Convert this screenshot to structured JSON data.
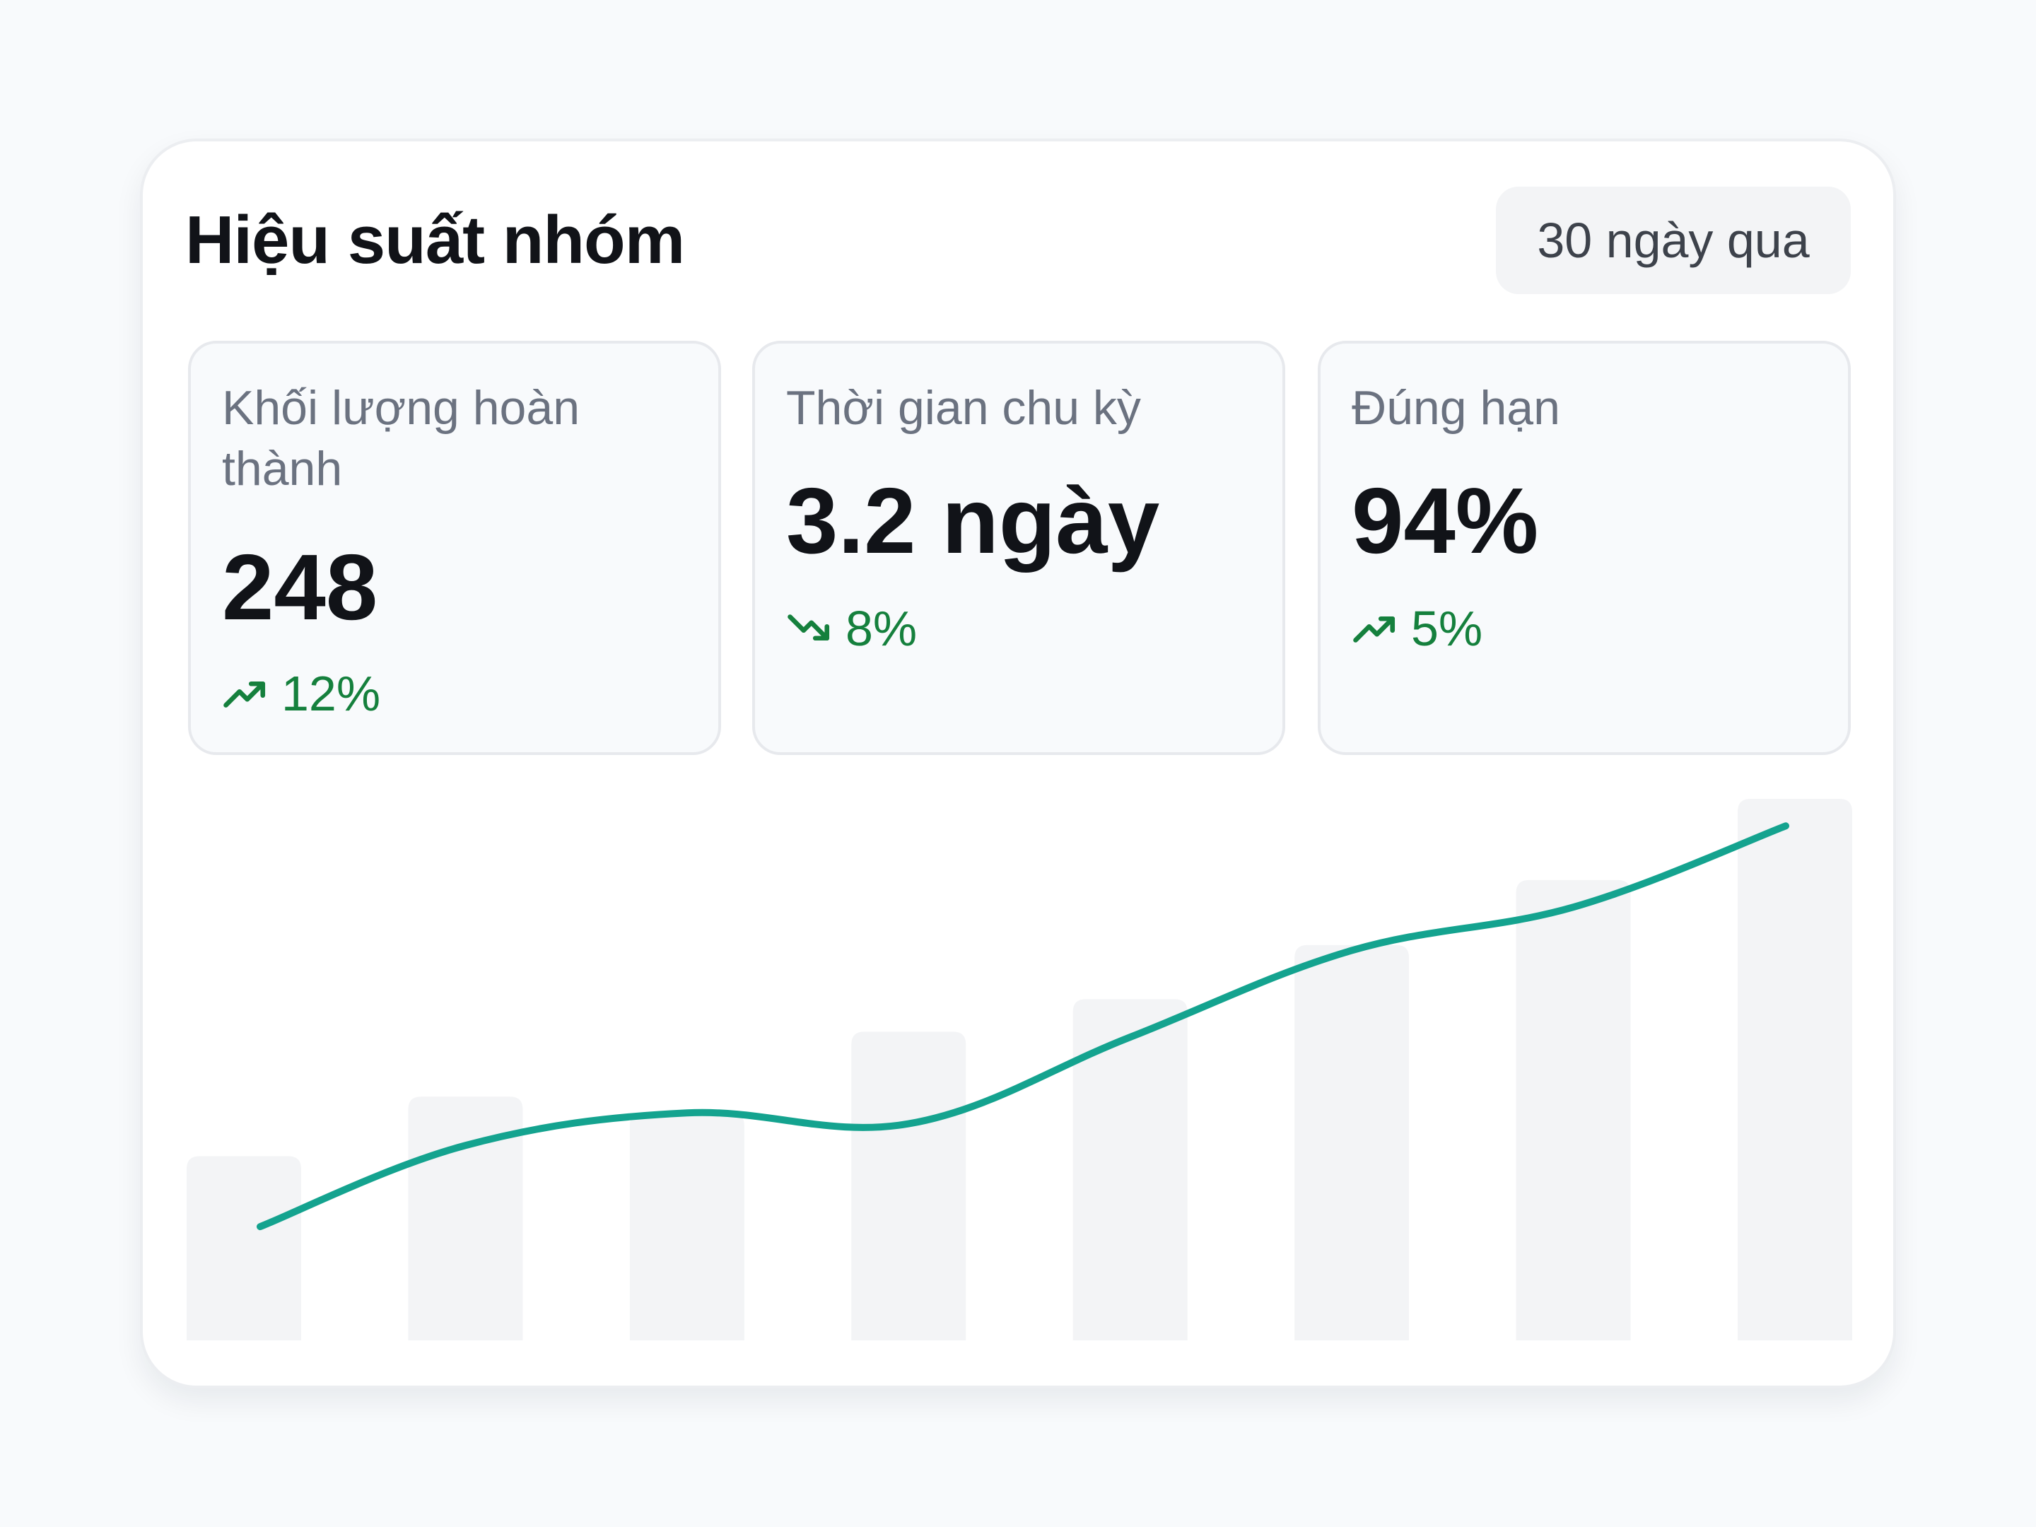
{
  "header": {
    "title": "Hiệu suất nhóm",
    "range_label": "30 ngày qua"
  },
  "metrics": [
    {
      "label": "Khối lượng hoàn thành",
      "value": "248",
      "change": "12%",
      "trend_icon": "trending-up-icon"
    },
    {
      "label": "Thời gian chu kỳ",
      "value": "3.2 ngày",
      "change": "8%",
      "trend_icon": "trending-down-icon"
    },
    {
      "label": "Đúng hạn",
      "value": "94%",
      "change": "5%",
      "trend_icon": "trending-up-icon"
    }
  ],
  "colors": {
    "accent_line": "#14a38f",
    "positive": "#15803d",
    "bar": "#f3f4f6"
  },
  "chart_data": {
    "type": "bar",
    "grid": false,
    "ylim": [
      0,
      100
    ],
    "categories": [
      "",
      "",
      "",
      "",
      "",
      "",
      "",
      ""
    ],
    "series": [
      {
        "type": "bar",
        "values": [
          34,
          45,
          42,
          57,
          63,
          73,
          85,
          100
        ]
      },
      {
        "type": "line",
        "values": [
          21,
          36,
          42,
          40,
          56,
          72,
          80,
          95
        ]
      }
    ]
  }
}
